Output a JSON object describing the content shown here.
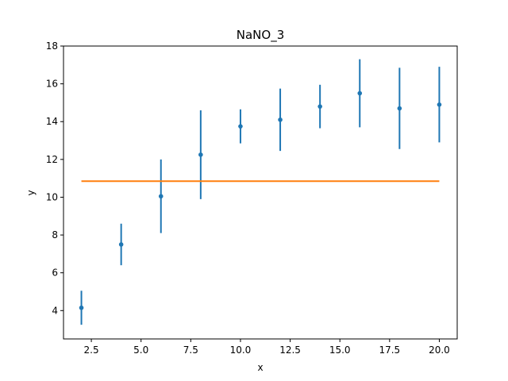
{
  "chart_data": {
    "type": "scatter",
    "title": "NaNO_3",
    "xlabel": "x",
    "ylabel": "y",
    "xlim": [
      1.1,
      20.9
    ],
    "ylim": [
      2.5,
      18
    ],
    "xticks": [
      2.5,
      5.0,
      7.5,
      10.0,
      12.5,
      15.0,
      17.5,
      20.0
    ],
    "xtick_labels": [
      "2.5",
      "5.0",
      "7.5",
      "10.0",
      "12.5",
      "15.0",
      "17.5",
      "20.0"
    ],
    "yticks": [
      4,
      6,
      8,
      10,
      12,
      14,
      16,
      18
    ],
    "ytick_labels": [
      "4",
      "6",
      "8",
      "10",
      "12",
      "14",
      "16",
      "18"
    ],
    "grid": false,
    "series": [
      {
        "kind": "errorbar",
        "color": "#1f77b4",
        "x": [
          2,
          4,
          6,
          8,
          10,
          12,
          14,
          16,
          18,
          20
        ],
        "y": [
          4.15,
          7.5,
          10.05,
          12.25,
          13.75,
          14.1,
          14.8,
          15.5,
          14.7,
          14.9
        ],
        "yerr": [
          0.9,
          1.1,
          1.95,
          2.35,
          0.9,
          1.65,
          1.15,
          1.8,
          2.15,
          2.0
        ]
      },
      {
        "kind": "line",
        "color": "#ff7f0e",
        "x": [
          2,
          20
        ],
        "y": [
          10.85,
          10.85
        ]
      }
    ]
  }
}
